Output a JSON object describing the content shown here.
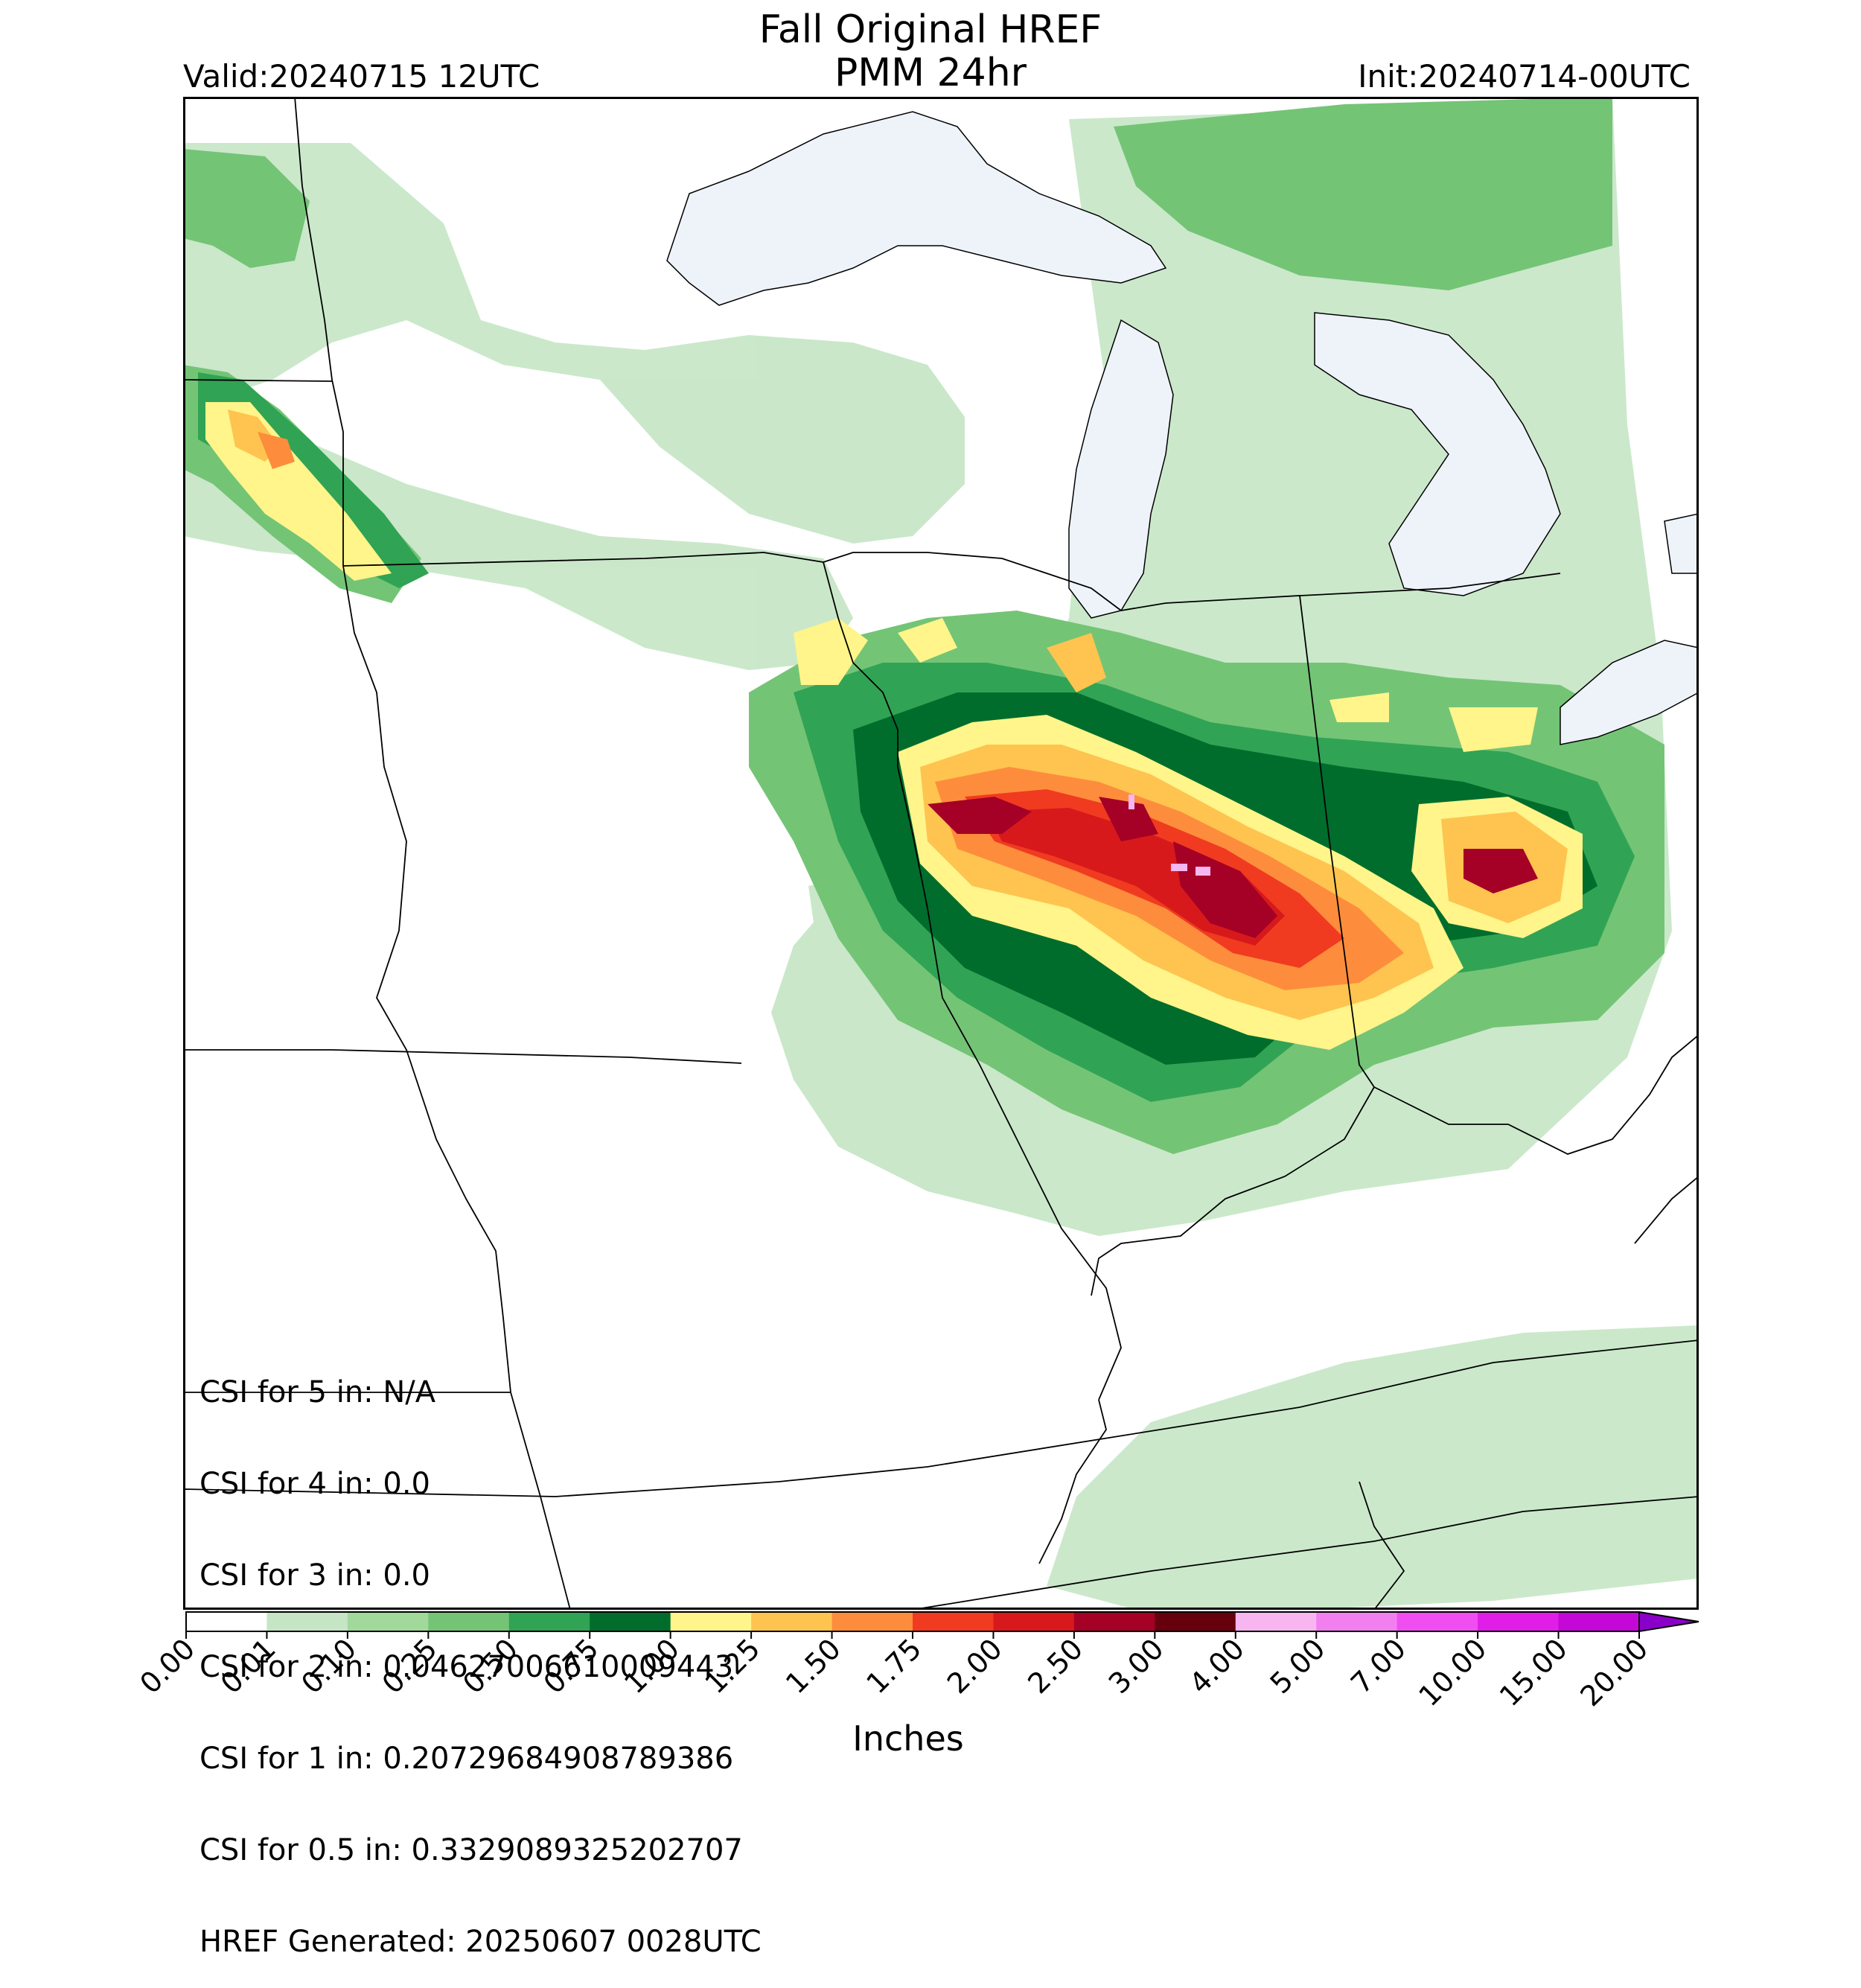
{
  "header": {
    "title_line1": "Fall Original HREF",
    "title_line2": "PMM 24hr",
    "valid": "Valid:20240715 12UTC",
    "init": "Init:20240714-00UTC"
  },
  "stats": {
    "lines": [
      "CSI for 5 in: N/A",
      "CSI for 4 in: 0.0",
      "CSI for 3 in: 0.0",
      "CSI for 2 in: 0.04627006610009443",
      "CSI for 1 in: 0.20729684908789386",
      "CSI for 0.5 in: 0.3329089325202707",
      "HREF Generated: 20250607 0028UTC"
    ]
  },
  "colorbar": {
    "label": "Inches",
    "ticks": [
      "0.00",
      "0.01",
      "0.10",
      "0.25",
      "0.50",
      "0.75",
      "1.00",
      "1.25",
      "1.50",
      "1.75",
      "2.00",
      "2.50",
      "3.00",
      "4.00",
      "5.00",
      "7.00",
      "10.00",
      "15.00",
      "20.00"
    ],
    "colors": [
      "#ffffff",
      "#c5e5c5",
      "#a1d99b",
      "#74c476",
      "#31a354",
      "#006d2c",
      "#fff58a",
      "#fec44f",
      "#fd8d3c",
      "#f03b20",
      "#d7191c",
      "#a50026",
      "#67000d",
      "#f7b6f0",
      "#f17ff0",
      "#f04ef0",
      "#e11ee8",
      "#c408d8",
      "#8b00c9"
    ]
  },
  "map": {
    "water_color": "#eef3fa",
    "land_edge_color": "#000000"
  }
}
